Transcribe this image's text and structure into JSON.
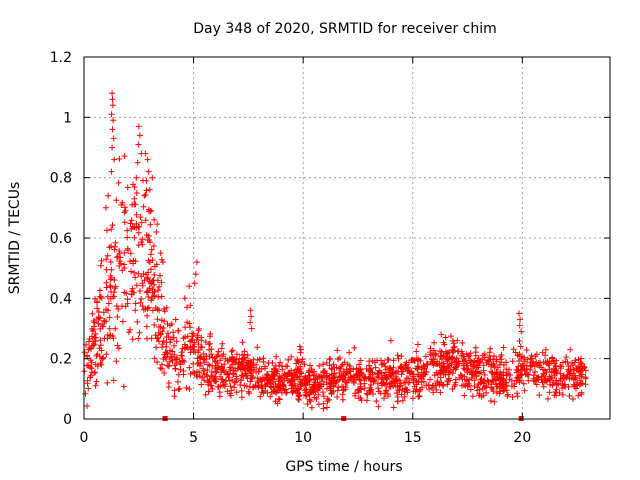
{
  "chart_data": {
    "type": "scatter",
    "title": "Day 348 of 2020, SRMTID for receiver chim",
    "xlabel": "GPS time / hours",
    "ylabel": "SRMTID / TECUs",
    "xlim": [
      0,
      24
    ],
    "ylim": [
      0,
      1.2
    ],
    "xticks": [
      0,
      5,
      10,
      15,
      20
    ],
    "xtick_labels": [
      "0",
      "5",
      "10",
      "15",
      "20"
    ],
    "yticks": [
      0,
      0.2,
      0.4,
      0.6,
      0.8,
      1.0,
      1.2
    ],
    "ytick_labels": [
      "0",
      "0.2",
      "0.4",
      "0.6",
      "0.8",
      "1",
      "1.2"
    ],
    "grid": true,
    "marker": "+",
    "color": "#ff0000",
    "trend": {
      "x": [
        0.0,
        0.3,
        0.6,
        1.0,
        1.3,
        1.6,
        2.0,
        2.3,
        2.6,
        3.0,
        3.3,
        3.6,
        3.8,
        4.0,
        4.3,
        4.6,
        5.0,
        5.3,
        5.6,
        6.0,
        6.5,
        7.0,
        7.5,
        8.0,
        8.5,
        9.0,
        9.5,
        10.0,
        10.5,
        11.0,
        11.5,
        12.0,
        12.5,
        13.0,
        13.5,
        14.0,
        14.5,
        15.0,
        15.5,
        16.0,
        16.5,
        17.0,
        17.5,
        18.0,
        18.5,
        19.0,
        19.5,
        20.0,
        20.5,
        21.0,
        21.5,
        22.0,
        22.5,
        22.9
      ],
      "y": [
        0.17,
        0.22,
        0.28,
        0.36,
        0.45,
        0.5,
        0.52,
        0.54,
        0.52,
        0.48,
        0.4,
        0.3,
        0.24,
        0.22,
        0.21,
        0.22,
        0.24,
        0.2,
        0.18,
        0.17,
        0.16,
        0.16,
        0.15,
        0.14,
        0.13,
        0.12,
        0.12,
        0.12,
        0.11,
        0.12,
        0.13,
        0.14,
        0.14,
        0.13,
        0.13,
        0.13,
        0.13,
        0.14,
        0.15,
        0.16,
        0.17,
        0.18,
        0.17,
        0.15,
        0.14,
        0.14,
        0.15,
        0.17,
        0.16,
        0.16,
        0.15,
        0.15,
        0.14,
        0.14
      ]
    },
    "spread": {
      "x": [
        0.0,
        0.5,
        1.0,
        1.5,
        2.0,
        2.5,
        3.0,
        3.5,
        4.0,
        5.0,
        6.0,
        10.0,
        15.0,
        20.0,
        23.0
      ],
      "y": [
        0.05,
        0.08,
        0.12,
        0.15,
        0.15,
        0.14,
        0.13,
        0.1,
        0.06,
        0.06,
        0.04,
        0.035,
        0.04,
        0.04,
        0.03
      ]
    },
    "outliers": [
      {
        "x": 1.28,
        "y": 1.08
      },
      {
        "x": 1.3,
        "y": 1.06
      },
      {
        "x": 1.32,
        "y": 1.04
      },
      {
        "x": 1.26,
        "y": 1.01
      },
      {
        "x": 1.33,
        "y": 0.99
      },
      {
        "x": 1.3,
        "y": 0.96
      },
      {
        "x": 1.35,
        "y": 0.93
      },
      {
        "x": 1.28,
        "y": 0.9
      },
      {
        "x": 1.38,
        "y": 0.86
      },
      {
        "x": 1.25,
        "y": 0.82
      },
      {
        "x": 1.1,
        "y": 0.74
      },
      {
        "x": 1.0,
        "y": 0.7
      },
      {
        "x": 2.5,
        "y": 0.97
      },
      {
        "x": 2.55,
        "y": 0.94
      },
      {
        "x": 2.48,
        "y": 0.91
      },
      {
        "x": 2.62,
        "y": 0.88
      },
      {
        "x": 2.45,
        "y": 0.85
      },
      {
        "x": 2.8,
        "y": 0.88
      },
      {
        "x": 2.9,
        "y": 0.86
      },
      {
        "x": 2.95,
        "y": 0.82
      },
      {
        "x": 2.85,
        "y": 0.79
      },
      {
        "x": 3.0,
        "y": 0.76
      },
      {
        "x": 2.75,
        "y": 0.74
      },
      {
        "x": 2.3,
        "y": 0.73
      },
      {
        "x": 2.2,
        "y": 0.71
      },
      {
        "x": 1.9,
        "y": 0.69
      },
      {
        "x": 3.2,
        "y": 0.66
      },
      {
        "x": 3.3,
        "y": 0.62
      },
      {
        "x": 3.5,
        "y": 0.55
      },
      {
        "x": 3.6,
        "y": 0.52
      },
      {
        "x": 5.15,
        "y": 0.52
      },
      {
        "x": 5.1,
        "y": 0.48
      },
      {
        "x": 5.05,
        "y": 0.45
      },
      {
        "x": 4.8,
        "y": 0.44
      },
      {
        "x": 4.6,
        "y": 0.4
      },
      {
        "x": 4.7,
        "y": 0.37
      },
      {
        "x": 7.6,
        "y": 0.36
      },
      {
        "x": 7.62,
        "y": 0.34
      },
      {
        "x": 7.58,
        "y": 0.32
      },
      {
        "x": 7.65,
        "y": 0.3
      },
      {
        "x": 9.85,
        "y": 0.24
      },
      {
        "x": 9.9,
        "y": 0.23
      },
      {
        "x": 9.88,
        "y": 0.22
      },
      {
        "x": 19.85,
        "y": 0.35
      },
      {
        "x": 19.9,
        "y": 0.33
      },
      {
        "x": 19.88,
        "y": 0.31
      },
      {
        "x": 19.95,
        "y": 0.29
      },
      {
        "x": 16.3,
        "y": 0.28
      },
      {
        "x": 16.5,
        "y": 0.27
      },
      {
        "x": 14.0,
        "y": 0.26
      },
      {
        "x": 12.1,
        "y": 0.22
      }
    ],
    "bottom_markers_x": [
      3.7,
      11.85,
      19.95
    ],
    "seed": 348,
    "n_points": 1900
  }
}
